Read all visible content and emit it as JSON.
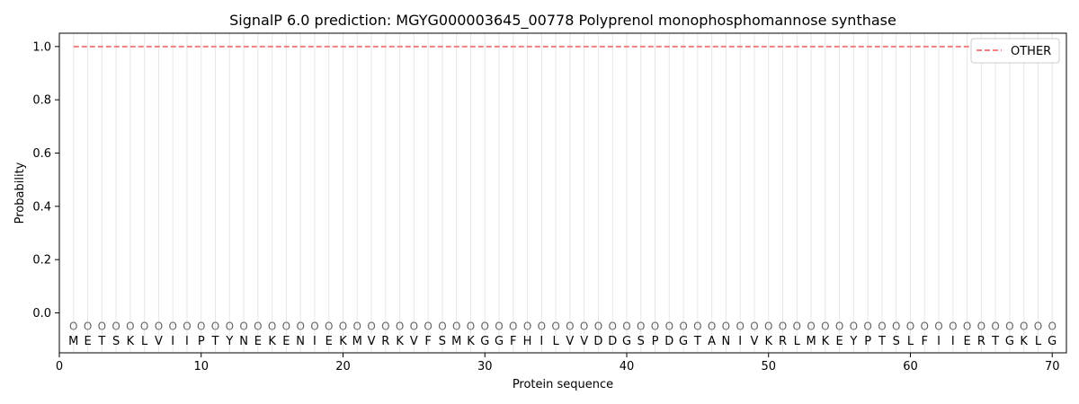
{
  "chart_data": {
    "type": "line",
    "title": "SignalP 6.0 prediction: MGYG000003645_00778 Polyprenol monophosphomannose synthase",
    "xlabel": "Protein sequence",
    "ylabel": "Probability",
    "xlim": [
      0,
      71
    ],
    "ylim": [
      -0.15,
      1.05
    ],
    "xticks": [
      0,
      10,
      20,
      30,
      40,
      50,
      60,
      70
    ],
    "yticks": [
      0.0,
      0.2,
      0.4,
      0.6,
      0.8,
      1.0
    ],
    "ytick_labels": [
      "0.0",
      "0.2",
      "0.4",
      "0.6",
      "0.8",
      "1.0"
    ],
    "grid": "vertical lines at each residue",
    "legend": {
      "position": "top-right",
      "entries": [
        {
          "name": "OTHER",
          "color": "#f08080",
          "style": "dashed"
        }
      ]
    },
    "sequence": [
      "M",
      "E",
      "T",
      "S",
      "K",
      "L",
      "V",
      "I",
      "I",
      "P",
      "T",
      "Y",
      "N",
      "E",
      "K",
      "E",
      "N",
      "I",
      "E",
      "K",
      "M",
      "V",
      "R",
      "K",
      "V",
      "F",
      "S",
      "M",
      "K",
      "G",
      "G",
      "F",
      "H",
      "I",
      "L",
      "V",
      "V",
      "D",
      "D",
      "G",
      "S",
      "P",
      "D",
      "G",
      "T",
      "A",
      "N",
      "I",
      "V",
      "K",
      "R",
      "L",
      "M",
      "K",
      "E",
      "Y",
      "P",
      "T",
      "S",
      "L",
      "F",
      "I",
      "I",
      "E",
      "R",
      "T",
      "G",
      "K",
      "L",
      "G"
    ],
    "predicted_state_label": "O",
    "series": [
      {
        "name": "OTHER",
        "color": "#f08080",
        "x_start": 1,
        "x_end": 70,
        "value": 1.0
      }
    ]
  }
}
